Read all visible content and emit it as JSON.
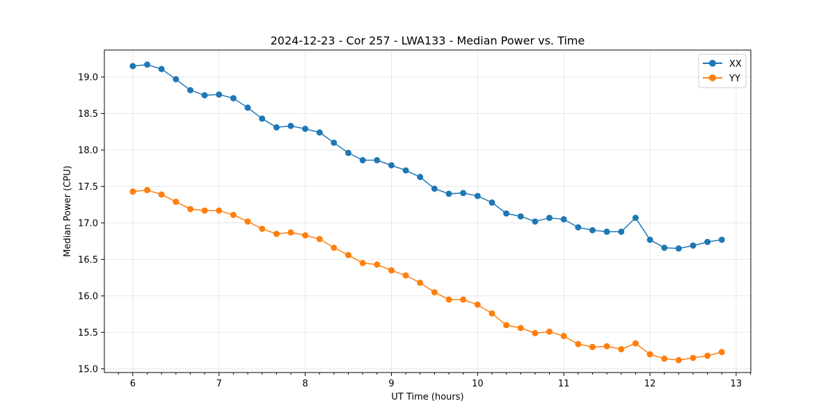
{
  "chart_data": {
    "type": "line",
    "title": "2024-12-23 - Cor 257 - LWA133 - Median Power vs. Time",
    "xlabel": "UT Time (hours)",
    "ylabel": "Median Power (CPU)",
    "xlim": [
      5.67,
      13.17
    ],
    "ylim": [
      14.95,
      19.37
    ],
    "xticks": [
      6,
      7,
      8,
      9,
      10,
      11,
      12,
      13
    ],
    "yticks": [
      15.0,
      15.5,
      16.0,
      16.5,
      17.0,
      17.5,
      18.0,
      18.5,
      19.0
    ],
    "ytick_labels": [
      "15.0",
      "15.5",
      "16.0",
      "16.5",
      "17.0",
      "17.5",
      "18.0",
      "18.5",
      "19.0"
    ],
    "grid": true,
    "legend_position": "top-right",
    "x": [
      6.0,
      6.167,
      6.333,
      6.5,
      6.667,
      6.833,
      7.0,
      7.167,
      7.333,
      7.5,
      7.667,
      7.833,
      8.0,
      8.167,
      8.333,
      8.5,
      8.667,
      8.833,
      9.0,
      9.167,
      9.333,
      9.5,
      9.667,
      9.833,
      10.0,
      10.167,
      10.333,
      10.5,
      10.667,
      10.833,
      11.0,
      11.167,
      11.333,
      11.5,
      11.667,
      11.833,
      12.0,
      12.167,
      12.333,
      12.5,
      12.667,
      12.833
    ],
    "series": [
      {
        "name": "XX",
        "color": "#1f77b4",
        "values": [
          19.15,
          19.17,
          19.11,
          18.97,
          18.82,
          18.75,
          18.76,
          18.71,
          18.58,
          18.43,
          18.31,
          18.33,
          18.29,
          18.24,
          18.1,
          17.96,
          17.86,
          17.86,
          17.79,
          17.72,
          17.63,
          17.47,
          17.4,
          17.41,
          17.37,
          17.28,
          17.13,
          17.09,
          17.02,
          17.07,
          17.05,
          16.94,
          16.9,
          16.88,
          16.88,
          17.07,
          16.77,
          16.66,
          16.65,
          16.69,
          16.74,
          16.77
        ]
      },
      {
        "name": "YY",
        "color": "#ff7f0e",
        "values": [
          17.43,
          17.45,
          17.39,
          17.29,
          17.19,
          17.17,
          17.17,
          17.11,
          17.02,
          16.92,
          16.85,
          16.87,
          16.83,
          16.78,
          16.66,
          16.56,
          16.45,
          16.43,
          16.35,
          16.28,
          16.18,
          16.05,
          15.95,
          15.95,
          15.88,
          15.76,
          15.6,
          15.56,
          15.49,
          15.51,
          15.45,
          15.34,
          15.3,
          15.31,
          15.27,
          15.35,
          15.2,
          15.14,
          15.12,
          15.15,
          15.18,
          15.23
        ]
      }
    ]
  }
}
